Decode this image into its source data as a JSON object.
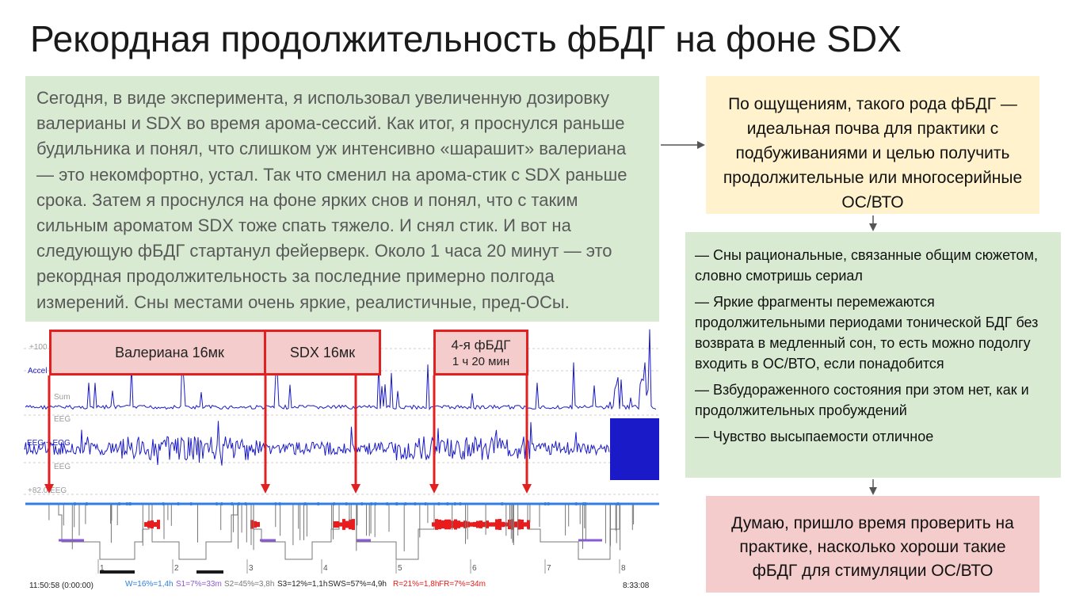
{
  "title": "Рекордная продолжительность фБДГ на фоне SDX",
  "description": "Сегодня, в виде эксперимента, я использовал увеличенную дозировку валерианы и SDX во время арома-сессий. Как итог, я проснулся раньше будильника и понял, что слишком уж интенсивно «шарашит» валериана — это некомфортно, устал. Так что сменил на арома-стик с SDX раньше срока. Затем я проснулся на фоне ярких снов и понял, что с таким сильным ароматом SDX тоже спать тяжело. И снял стик. И вот на следующую фБДГ стартанул фейерверк. Около 1 часа 20 минут — это рекордная продолжительность за последние примерно полгода измерений. Сны местами очень яркие, реалистичные, пред-ОСы.",
  "feeling_box": "По ощущениям, такого рода фБДГ — идеальная почва для практики с подбуживаниями и целью получить продолжительные или многосерийные ОС/ВТО",
  "observations": [
    "— Сны рациональные, связанные общим сюжетом, словно смотришь сериал",
    "— Яркие фрагменты перемежаются продолжительными периодами тонической БДГ без возврата в медленный сон, то есть можно подолгу входить в ОС/ВТО, если понадобится",
    "— Взбудораженного состояния при этом нет, как и продолжительных пробуждений",
    "— Чувство высыпаемости отличное"
  ],
  "conclusion": "Думаю, пришло время проверить на практике, насколько хороши такие фБДГ для стимуляции ОС/ВТО",
  "chart": {
    "label_valerian": "Валериана 16мк",
    "label_sdx": "SDX 16мк",
    "label_rem_title": "4-я фБДГ",
    "label_rem_duration": "1 ч 20 мин",
    "channel_labels": {
      "top_scale": "+100",
      "accel": "Accel",
      "sum": "Sum",
      "eeg_top": "EEG",
      "eeg_mid": "EEG + EOG",
      "eeg_bottom": "EEG",
      "eeg_scale": "+82.0 EEG"
    },
    "hours": [
      "1",
      "2",
      "3",
      "4",
      "5",
      "6",
      "7",
      "8"
    ],
    "footer": {
      "start": "11:50:58 (0:00:00)",
      "w": "W=16%=1,4h",
      "s1": "S1=7%=33m",
      "s2": "S2=45%=3,8h",
      "s3": "S3=12%=1,1h",
      "sws": "SWS=57%=4,9h",
      "r": "R=21%=1,8h",
      "fr": "FR=7%=34m",
      "end": "8:33:08"
    },
    "colors": {
      "signal": "#1a1ac8",
      "wake": "#2f7fe0",
      "rem": "#e81c1c",
      "s1": "#8a5ad6",
      "s3": "#1a1a1a",
      "arrow": "#e22020"
    }
  }
}
